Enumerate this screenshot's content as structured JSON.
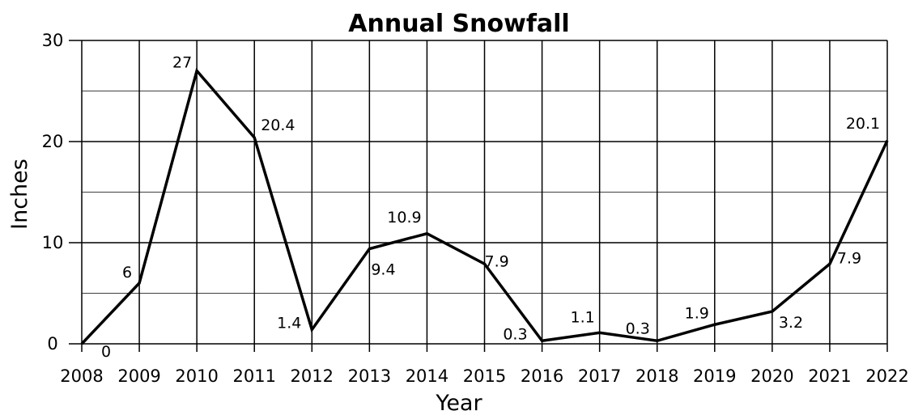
{
  "chart_data": {
    "type": "line",
    "title": "Annual Snowfall",
    "xlabel": "Year",
    "ylabel": "Inches",
    "ylim": [
      0,
      30
    ],
    "yticks": [
      "0",
      "10",
      "20",
      "30"
    ],
    "grid": true,
    "categories": [
      "2008",
      "2009",
      "2010",
      "2011",
      "2012",
      "2013",
      "2014",
      "2015",
      "2016",
      "2017",
      "2018",
      "2019",
      "2020",
      "2021",
      "2022"
    ],
    "series": [
      {
        "values": [
          0,
          6,
          27,
          20.4,
          1.4,
          9.4,
          10.9,
          7.9,
          0.3,
          1.1,
          0.3,
          1.9,
          3.2,
          7.9,
          20.1
        ],
        "labels": [
          "0",
          "6",
          "27",
          "20.4",
          "1.4",
          "9.4",
          "10.9",
          "7.9",
          "0.3",
          "1.1",
          "0.3",
          "1.9",
          "3.2",
          "7.9",
          "20.1"
        ],
        "color": "#000000"
      }
    ]
  }
}
